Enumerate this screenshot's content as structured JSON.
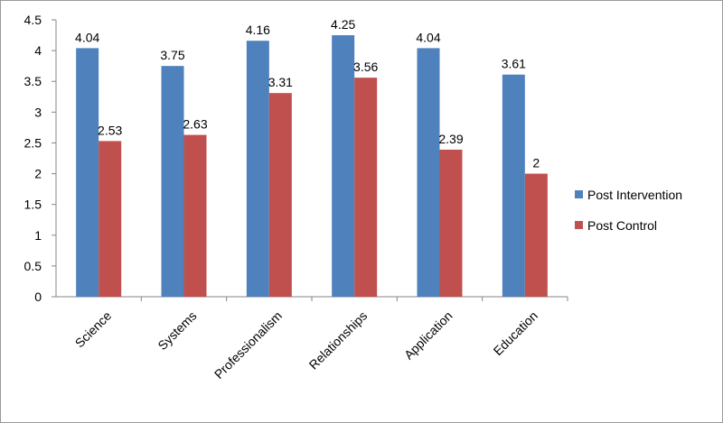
{
  "chart_data": {
    "type": "bar",
    "categories": [
      "Science",
      "Systems",
      "Professionalism",
      "Relationships",
      "Application",
      "Education"
    ],
    "series": [
      {
        "name": "Post Intervention",
        "color": "#4F81BD",
        "values": [
          4.04,
          3.75,
          4.16,
          4.25,
          4.04,
          3.61
        ],
        "labels": [
          "4.04",
          "3.75",
          "4.16",
          "4.25",
          "4.04",
          "3.61"
        ]
      },
      {
        "name": "Post Control",
        "color": "#C0504D",
        "values": [
          2.53,
          2.63,
          3.31,
          3.56,
          2.39,
          2
        ],
        "labels": [
          "2.53",
          "2.63",
          "3.31",
          "3.56",
          "2.39",
          "2"
        ]
      }
    ],
    "ylim": [
      0,
      4.5
    ],
    "yticks": [
      "0",
      "0.5",
      "1",
      "1.5",
      "2",
      "2.5",
      "3",
      "3.5",
      "4",
      "4.5"
    ],
    "grid": false,
    "legend_position": "right",
    "xlabel": "",
    "ylabel": "",
    "title": ""
  }
}
